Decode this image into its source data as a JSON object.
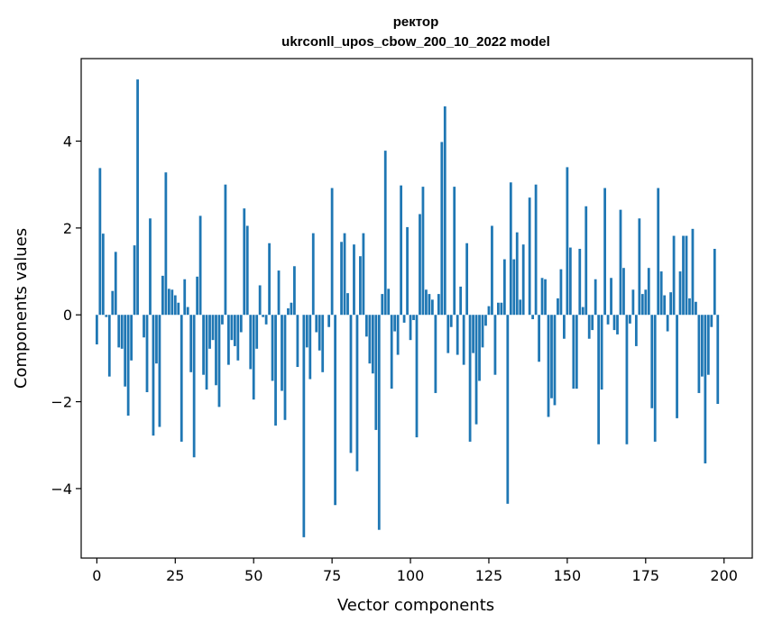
{
  "chart_data": {
    "type": "bar",
    "title_line1": "ректор",
    "title_line2": "ukrconll_upos_cbow_200_10_2022 model",
    "xlabel": "Vector components",
    "ylabel": "Components values",
    "xlim": [
      -5,
      209
    ],
    "ylim": [
      -5.6,
      5.9
    ],
    "xticks": [
      0,
      25,
      50,
      75,
      100,
      125,
      150,
      175,
      200
    ],
    "yticks": [
      -4,
      -2,
      0,
      2,
      4
    ],
    "ytick_labels": [
      "−4",
      "−2",
      "0",
      "2",
      "4"
    ],
    "bar_color": "#1f77b4",
    "grid": false,
    "values": [
      -0.68,
      3.38,
      1.87,
      -0.05,
      -1.42,
      0.55,
      1.45,
      -0.75,
      -0.78,
      -1.65,
      -2.32,
      -1.05,
      1.6,
      5.42,
      0.0,
      -0.52,
      -1.78,
      2.22,
      -2.78,
      -1.12,
      -2.58,
      0.9,
      3.28,
      0.6,
      0.58,
      0.45,
      0.28,
      -2.92,
      0.82,
      0.18,
      -1.32,
      -3.28,
      0.88,
      2.28,
      -1.38,
      -1.72,
      -0.78,
      -0.58,
      -1.62,
      -2.12,
      -0.22,
      3.0,
      -1.15,
      -0.58,
      -0.72,
      -1.05,
      -0.4,
      2.45,
      2.05,
      -1.25,
      -1.95,
      -0.78,
      0.68,
      -0.05,
      -0.22,
      1.65,
      -1.52,
      -2.55,
      1.02,
      -1.75,
      -2.42,
      0.15,
      0.28,
      1.12,
      -1.2,
      0.0,
      -5.12,
      -0.75,
      -1.48,
      1.88,
      -0.4,
      -0.82,
      -1.32,
      0.0,
      -0.28,
      2.92,
      -4.38,
      0.0,
      1.68,
      1.88,
      0.5,
      -3.18,
      1.62,
      -3.6,
      1.35,
      1.88,
      -0.5,
      -1.12,
      -1.35,
      -2.65,
      -4.95,
      0.48,
      3.78,
      0.6,
      -1.7,
      -0.38,
      -0.92,
      2.98,
      -0.18,
      2.02,
      -0.58,
      -0.12,
      -2.82,
      2.32,
      2.95,
      0.58,
      0.48,
      0.35,
      -1.8,
      0.48,
      3.98,
      4.8,
      -0.88,
      -0.28,
      2.95,
      -0.92,
      0.65,
      -1.15,
      1.65,
      -2.92,
      -0.88,
      -2.52,
      -1.52,
      -0.75,
      -0.25,
      0.2,
      2.05,
      -1.38,
      0.28,
      0.28,
      1.28,
      -4.35,
      3.05,
      1.28,
      1.9,
      0.35,
      1.62,
      0.0,
      2.7,
      -0.1,
      3.0,
      -1.08,
      0.85,
      0.82,
      -2.35,
      -1.92,
      -2.08,
      0.38,
      1.05,
      -0.55,
      3.4,
      1.55,
      -1.7,
      -1.7,
      1.52,
      0.18,
      2.5,
      -0.55,
      -0.35,
      0.82,
      -2.98,
      -1.72,
      2.92,
      -0.22,
      0.85,
      -0.35,
      -0.45,
      2.42,
      1.08,
      -2.98,
      -0.2,
      0.58,
      -0.72,
      2.22,
      0.48,
      0.58,
      1.08,
      -2.15,
      -2.92,
      2.92,
      1.0,
      0.45,
      -0.38,
      0.52,
      1.82,
      -2.38,
      1.0,
      1.82,
      1.82,
      0.38,
      1.98,
      0.3,
      -1.8,
      -1.42,
      -3.42,
      -1.38,
      -0.28,
      1.52,
      -2.05,
      0.0
    ]
  }
}
